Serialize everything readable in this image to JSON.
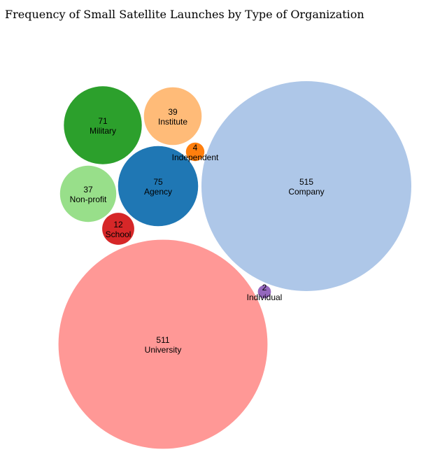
{
  "chart_data": {
    "type": "bubble",
    "title": "Frequency of Small Satellite Launches by Type of Organization",
    "bubbles": [
      {
        "label": "Company",
        "value": 515,
        "color": "#aec7e8"
      },
      {
        "label": "University",
        "value": 511,
        "color": "#ff9896"
      },
      {
        "label": "Agency",
        "value": 75,
        "color": "#1f77b4"
      },
      {
        "label": "Military",
        "value": 71,
        "color": "#2ca02c"
      },
      {
        "label": "Institute",
        "value": 39,
        "color": "#ffbb78"
      },
      {
        "label": "Non-profit",
        "value": 37,
        "color": "#98df8a"
      },
      {
        "label": "School",
        "value": 12,
        "color": "#d62728"
      },
      {
        "label": "Independent",
        "value": 4,
        "color": "#ff7f0e"
      },
      {
        "label": "Individual",
        "value": 2,
        "color": "#9467bd"
      }
    ]
  }
}
